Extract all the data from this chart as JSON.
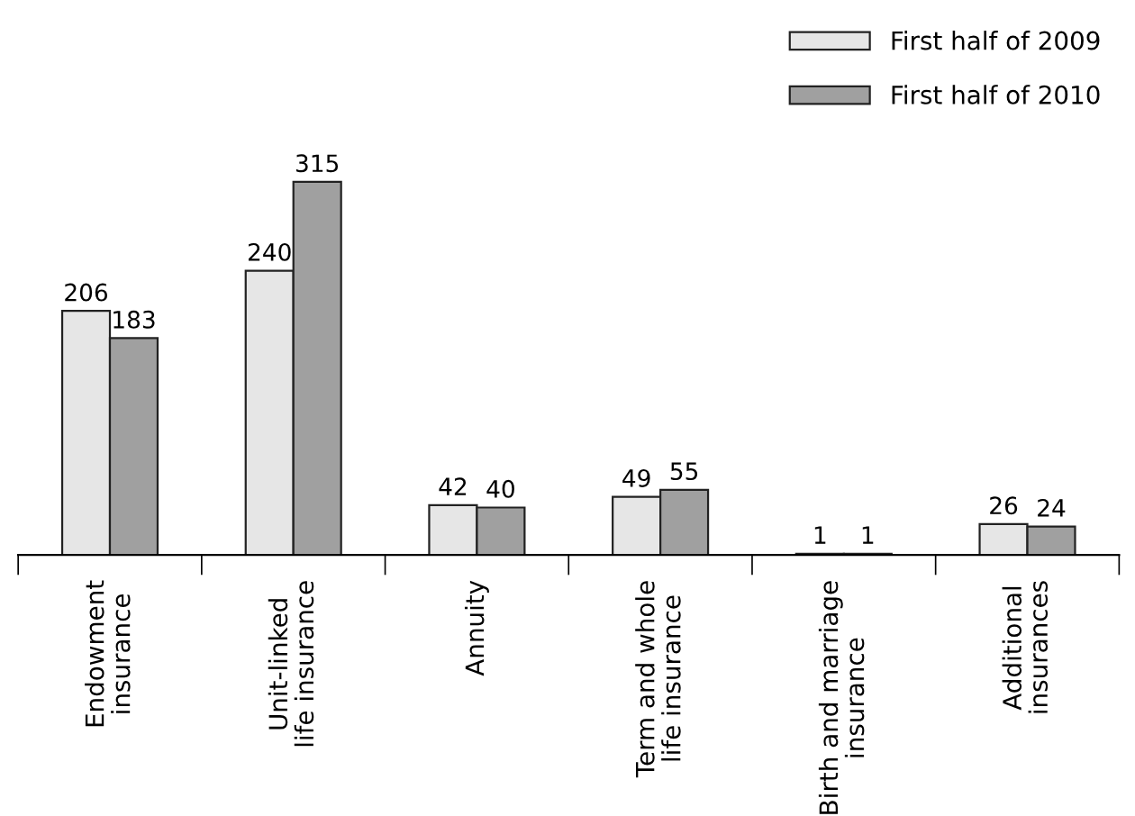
{
  "chart_data": {
    "type": "bar",
    "categories": [
      "Endowment\ninsurance",
      "Unit-linked\nlife insurance",
      "Annuity",
      "Term and whole\nlife insurance",
      "Birth and marriage\ninsurance",
      "Additional\ninsurances"
    ],
    "series": [
      {
        "name": "First half of 2009",
        "color": "#e6e6e6",
        "values": [
          206,
          240,
          42,
          49,
          1,
          26
        ]
      },
      {
        "name": "First half of 2010",
        "color": "#a0a0a0",
        "values": [
          183,
          315,
          40,
          55,
          1,
          24
        ]
      }
    ],
    "data_labels": true,
    "legend": "top right",
    "grid": false,
    "tick_labels": "x"
  }
}
